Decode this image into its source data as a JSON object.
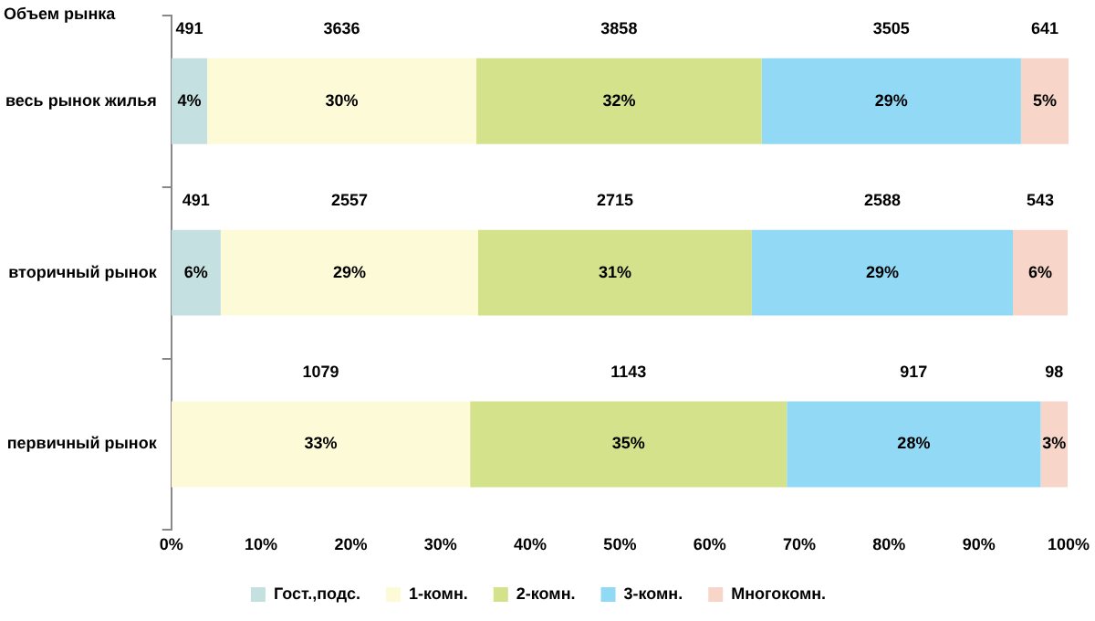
{
  "chart_data": {
    "type": "bar",
    "orientation": "horizontal",
    "stacked": true,
    "categories": [
      "весь рынок жилья",
      "вторичный рынок",
      "первичный рынок"
    ],
    "series": [
      {
        "name": "Гост.,подс.",
        "color": "#c5e0e0",
        "values": [
          4.0,
          5.5,
          null
        ],
        "value_labels": [
          "4%",
          "6%",
          null
        ]
      },
      {
        "name": "1-комн.",
        "color": "#fdfad8",
        "values": [
          30.0,
          28.7,
          33.3
        ],
        "value_labels": [
          "30%",
          "29%",
          "33%"
        ]
      },
      {
        "name": "2-комн.",
        "color": "#d4e28c",
        "values": [
          31.8,
          30.5,
          35.3
        ],
        "value_labels": [
          "32%",
          "31%",
          "35%"
        ]
      },
      {
        "name": "3-комн.",
        "color": "#92d9f5",
        "values": [
          28.9,
          29.1,
          28.3
        ],
        "value_labels": [
          "29%",
          "29%",
          "28%"
        ]
      },
      {
        "name": "Многокомн.",
        "color": "#f7d5c8",
        "values": [
          5.3,
          6.1,
          3.0
        ],
        "value_labels": [
          "5%",
          "6%",
          "3%"
        ]
      }
    ],
    "xlim": [
      0,
      100
    ],
    "xticks": [
      {
        "value": 0,
        "label": "0%"
      },
      {
        "value": 10,
        "label": "10%"
      },
      {
        "value": 20,
        "label": "20%"
      },
      {
        "value": 30,
        "label": "30%"
      },
      {
        "value": 40,
        "label": "40%"
      },
      {
        "value": 50,
        "label": "50%"
      },
      {
        "value": 60,
        "label": "60%"
      },
      {
        "value": 70,
        "label": "70%"
      },
      {
        "value": 80,
        "label": "80%"
      },
      {
        "value": 90,
        "label": "90%"
      },
      {
        "value": 100,
        "label": "100%"
      }
    ],
    "grid": false,
    "legend": "bottom",
    "annotations": [
      "Объем рынка",
      "491",
      "3636",
      "3858",
      "3505",
      "641",
      "491",
      "2557",
      "2715",
      "2588",
      "543",
      "1079",
      "1143",
      "917",
      "98"
    ]
  }
}
